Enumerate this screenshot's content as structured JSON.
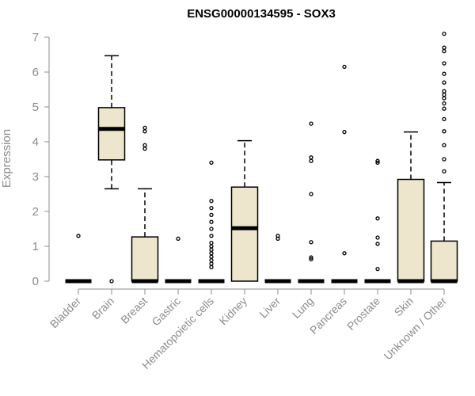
{
  "chart_data": {
    "type": "boxplot",
    "title": "ENSG00000134595 - SOX3",
    "ylabel": "Expression",
    "xlabel": "",
    "ylim": [
      0,
      7.2
    ],
    "yticks": [
      0,
      1,
      2,
      3,
      4,
      5,
      6,
      7
    ],
    "box_color": "#ede6cc",
    "axis_color": "#8c8c8c",
    "categories": [
      "Bladder",
      "Brain",
      "Breast",
      "Gastric",
      "Hematopoietic cells",
      "Kidney",
      "Liver",
      "Lung",
      "Pancreas",
      "Prostate",
      "Skin",
      "Unknown / Other"
    ],
    "boxes": [
      {
        "q1": 0,
        "median": 0,
        "q3": 0,
        "low": 0,
        "high": 0,
        "outliers": [
          1.3
        ]
      },
      {
        "q1": 3.48,
        "median": 4.37,
        "q3": 4.98,
        "low": 2.65,
        "high": 6.47,
        "outliers": [
          0
        ]
      },
      {
        "q1": 0,
        "median": 0,
        "q3": 1.27,
        "low": 0,
        "high": 2.65,
        "outliers": [
          3.8,
          3.9,
          4.3,
          4.4
        ]
      },
      {
        "q1": 0,
        "median": 0,
        "q3": 0,
        "low": 0,
        "high": 0,
        "outliers": [
          1.22
        ]
      },
      {
        "q1": 0,
        "median": 0,
        "q3": 0,
        "low": 0,
        "high": 0,
        "outliers": [
          0.4,
          0.5,
          0.6,
          0.7,
          0.8,
          0.9,
          1.0,
          1.1,
          1.3,
          1.5,
          1.7,
          1.9,
          2.1,
          2.3,
          3.4
        ]
      },
      {
        "q1": 0,
        "median": 1.52,
        "q3": 2.7,
        "low": 0,
        "high": 4.03,
        "outliers": []
      },
      {
        "q1": 0,
        "median": 0,
        "q3": 0,
        "low": 0,
        "high": 0,
        "outliers": [
          1.22,
          1.3
        ]
      },
      {
        "q1": 0,
        "median": 0,
        "q3": 0,
        "low": 0,
        "high": 0,
        "outliers": [
          0.63,
          0.68,
          1.12,
          2.5,
          3.45,
          3.55,
          4.52
        ]
      },
      {
        "q1": 0,
        "median": 0,
        "q3": 0,
        "low": 0,
        "high": 0,
        "outliers": [
          0.8,
          4.28,
          6.15
        ]
      },
      {
        "q1": 0,
        "median": 0,
        "q3": 0,
        "low": 0,
        "high": 0,
        "outliers": [
          0.35,
          1.07,
          1.25,
          1.8,
          3.4,
          3.45
        ]
      },
      {
        "q1": 0,
        "median": 0,
        "q3": 2.92,
        "low": 0,
        "high": 4.28,
        "outliers": []
      },
      {
        "q1": 0,
        "median": 0,
        "q3": 1.15,
        "low": 0,
        "high": 2.83,
        "outliers": [
          3.15,
          3.5,
          3.9,
          4.3,
          4.65,
          4.95,
          5.1,
          5.25,
          5.35,
          5.45,
          5.7,
          5.95,
          6.25,
          6.6,
          6.7,
          7.1
        ]
      }
    ]
  }
}
